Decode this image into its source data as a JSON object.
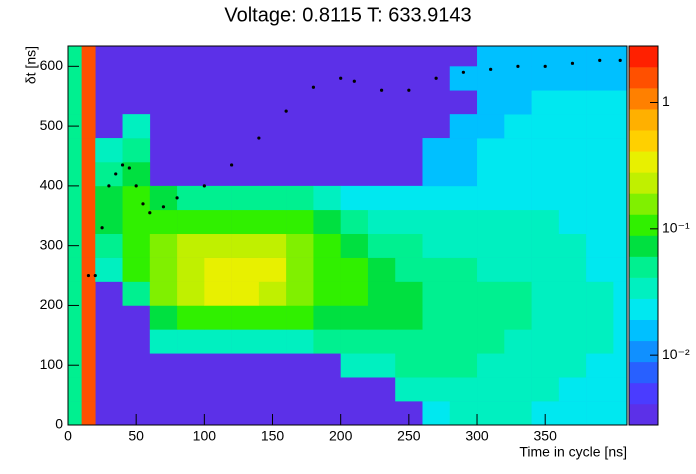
{
  "chart_data": {
    "type": "heatmap",
    "title": "Voltage: 0.8115 T: 633.9143",
    "x_label": "Time in cycle [ns]",
    "y_label": "δt [ns]",
    "xlim": [
      0,
      410
    ],
    "ylim": [
      0,
      634
    ],
    "xticks": [
      0,
      50,
      100,
      150,
      200,
      250,
      300,
      350
    ],
    "yticks": [
      0,
      100,
      200,
      300,
      400,
      500,
      600
    ],
    "zlim": [
      0.0028,
      2.8
    ],
    "zlog": true,
    "zticks": [
      {
        "value": 0.01,
        "label": "10⁻²"
      },
      {
        "value": 0.1,
        "label": "10⁻¹"
      },
      1
    ],
    "frame_color": "#5c30e8",
    "palette": [
      "#5c30e8",
      "#4a3cff",
      "#2860ff",
      "#1090ff",
      "#00c0ff",
      "#00e8f0",
      "#00f0c0",
      "#00f090",
      "#00e040",
      "#30f000",
      "#80f000",
      "#c0f000",
      "#e8f000",
      "#ffd000",
      "#ffb000",
      "#ff8000",
      "#ff5000",
      "#ff2000"
    ],
    "xbins": [
      0,
      10,
      20,
      40,
      60,
      80,
      100,
      120,
      140,
      160,
      180,
      200,
      220,
      240,
      260,
      280,
      300,
      320,
      340,
      360,
      380,
      400,
      410
    ],
    "ybins": [
      0,
      40,
      80,
      120,
      160,
      200,
      240,
      280,
      320,
      360,
      400,
      440,
      480,
      520,
      560,
      600,
      634
    ],
    "z": [
      [
        0.05,
        1.5,
        0,
        0,
        0,
        0,
        0,
        0,
        0,
        0,
        0,
        0,
        0,
        0,
        0.02,
        0.03,
        0.03,
        0.03,
        0.02,
        0.02,
        0.02,
        0.02
      ],
      [
        0.05,
        1.5,
        0,
        0,
        0,
        0,
        0,
        0,
        0,
        0,
        0,
        0,
        0,
        0.03,
        0.04,
        0.04,
        0.04,
        0.03,
        0.03,
        0.02,
        0.02,
        0.02
      ],
      [
        0.05,
        1.5,
        0,
        0,
        0,
        0,
        0,
        0,
        0,
        0,
        0,
        0.03,
        0.04,
        0.05,
        0.05,
        0.05,
        0.04,
        0.04,
        0.03,
        0.03,
        0.02,
        0.02
      ],
      [
        0.05,
        1.5,
        0,
        0,
        0.03,
        0.04,
        0.04,
        0.04,
        0.04,
        0.04,
        0.05,
        0.06,
        0.06,
        0.06,
        0.06,
        0.05,
        0.05,
        0.04,
        0.04,
        0.03,
        0.03,
        0.02
      ],
      [
        0.05,
        1.5,
        0,
        0,
        0.08,
        0.1,
        0.1,
        0.1,
        0.1,
        0.09,
        0.08,
        0.08,
        0.07,
        0.07,
        0.06,
        0.06,
        0.05,
        0.05,
        0.04,
        0.03,
        0.03,
        0.02
      ],
      [
        0.05,
        1.5,
        0,
        0.06,
        0.15,
        0.2,
        0.3,
        0.3,
        0.25,
        0.15,
        0.1,
        0.09,
        0.08,
        0.07,
        0.06,
        0.06,
        0.05,
        0.05,
        0.04,
        0.03,
        0.03,
        0.02
      ],
      [
        0.05,
        1.5,
        0.04,
        0.1,
        0.15,
        0.25,
        0.35,
        0.35,
        0.3,
        0.15,
        0.1,
        0.09,
        0.08,
        0.06,
        0.05,
        0.05,
        0.04,
        0.04,
        0.03,
        0.03,
        0.02,
        0.02
      ],
      [
        0.05,
        1.5,
        0.06,
        0.12,
        0.15,
        0.2,
        0.25,
        0.25,
        0.2,
        0.15,
        0.1,
        0.08,
        0.06,
        0.05,
        0.04,
        0.04,
        0.04,
        0.03,
        0.03,
        0.03,
        0.02,
        0.02
      ],
      [
        0.05,
        1.5,
        0.07,
        0.12,
        0.12,
        0.12,
        0.12,
        0.12,
        0.12,
        0.1,
        0.08,
        0.05,
        0.04,
        0.03,
        0.03,
        0.03,
        0.03,
        0.03,
        0.03,
        0.02,
        0.02,
        0.02
      ],
      [
        0.05,
        1.5,
        0.08,
        0.1,
        0.08,
        0.06,
        0.05,
        0.05,
        0.05,
        0.05,
        0.04,
        0.02,
        0.02,
        0.02,
        0.02,
        0.02,
        0.02,
        0.02,
        0.02,
        0.02,
        0.02,
        0.02
      ],
      [
        0.05,
        1.5,
        0.06,
        0.08,
        0,
        0,
        0,
        0,
        0,
        0,
        0,
        0,
        0,
        0,
        0.015,
        0.015,
        0.02,
        0.02,
        0.02,
        0.02,
        0.02,
        0.02
      ],
      [
        0.05,
        1.5,
        0.03,
        0.06,
        0,
        0,
        0,
        0,
        0,
        0,
        0,
        0,
        0,
        0,
        0.015,
        0.015,
        0.02,
        0.02,
        0.02,
        0.02,
        0.02,
        0.02
      ],
      [
        0.05,
        1.5,
        0,
        0.04,
        0,
        0,
        0,
        0,
        0,
        0,
        0,
        0,
        0,
        0,
        0,
        0.015,
        0.015,
        0.02,
        0.02,
        0.02,
        0.02,
        0.02
      ],
      [
        0.05,
        1.5,
        0,
        0,
        0,
        0,
        0,
        0,
        0,
        0,
        0,
        0,
        0,
        0,
        0,
        0,
        0.015,
        0.015,
        0.02,
        0.02,
        0.02,
        0.02
      ],
      [
        0.05,
        1.5,
        0,
        0,
        0,
        0,
        0,
        0,
        0,
        0,
        0,
        0,
        0,
        0,
        0,
        0.015,
        0.015,
        0.015,
        0.015,
        0.015,
        0.015,
        0.015
      ],
      [
        0.05,
        1.5,
        0,
        0,
        0,
        0,
        0,
        0,
        0,
        0,
        0,
        0,
        0,
        0,
        0,
        0,
        0.015,
        0.015,
        0.015,
        0.015,
        0.015,
        0.015
      ]
    ],
    "profile": {
      "color": "#000000",
      "x": [
        15,
        20,
        25,
        30,
        35,
        40,
        45,
        50,
        55,
        60,
        70,
        80,
        100,
        120,
        140,
        160,
        180,
        200,
        210,
        230,
        250,
        270,
        290,
        310,
        330,
        350,
        370,
        390,
        405
      ],
      "y": [
        250,
        250,
        330,
        400,
        420,
        435,
        430,
        400,
        370,
        355,
        365,
        380,
        400,
        435,
        480,
        525,
        565,
        580,
        575,
        560,
        560,
        580,
        590,
        595,
        600,
        600,
        605,
        610,
        610
      ]
    }
  }
}
